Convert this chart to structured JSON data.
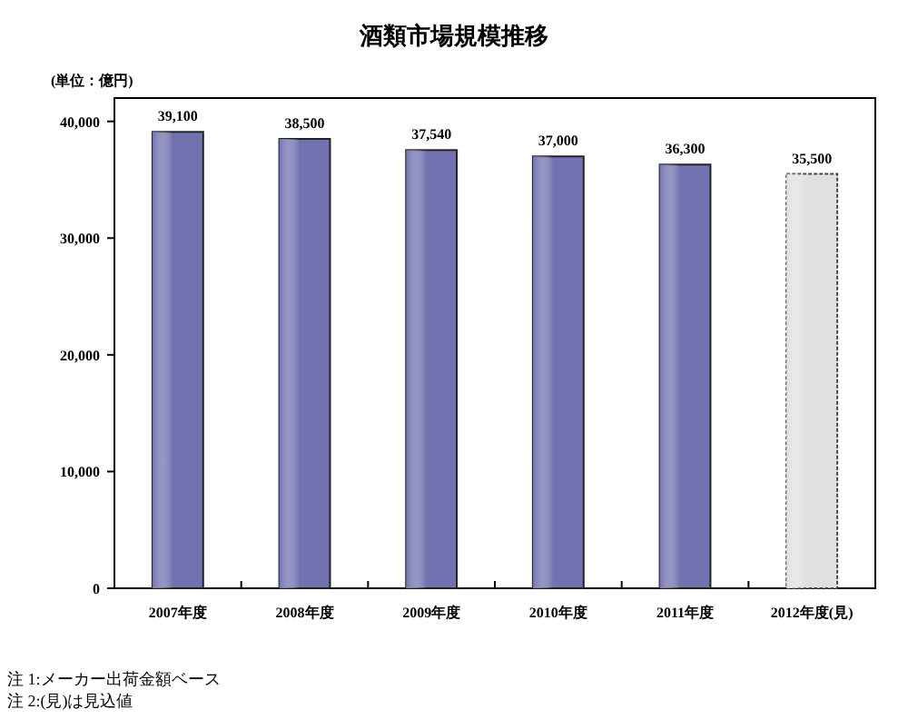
{
  "chart_data": {
    "type": "bar",
    "title": "酒類市場規模推移",
    "ylabel": "(単位：億円)",
    "categories": [
      "2007年度",
      "2008年度",
      "2009年度",
      "2010年度",
      "2011年度",
      "2012年度(見)"
    ],
    "values": [
      39100,
      38500,
      37540,
      37000,
      36300,
      35500
    ],
    "value_labels": [
      "39,100",
      "38,500",
      "37,540",
      "37,000",
      "36,300",
      "35,500"
    ],
    "colors": [
      "#7272b0",
      "#7272b0",
      "#7272b0",
      "#7272b0",
      "#7272b0",
      "#e0e0e0"
    ],
    "ylim": [
      0,
      42000
    ],
    "yticks": [
      {
        "value": 0,
        "label": "0"
      },
      {
        "value": 10000,
        "label": "10,000"
      },
      {
        "value": 20000,
        "label": "20,000"
      },
      {
        "value": 30000,
        "label": "30,000"
      },
      {
        "value": 40000,
        "label": "40,000"
      }
    ],
    "grid": false,
    "annotations": [
      "注 1:メーカー出荷金額ベース",
      "注 2:(見)は見込値"
    ]
  }
}
